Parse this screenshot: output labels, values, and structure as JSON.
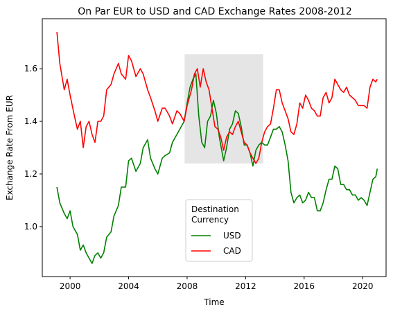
{
  "chart_data": {
    "type": "line",
    "title": "On Par EUR to USD and CAD Exchange Rates 2008-2012",
    "xlabel": "Time",
    "ylabel": "Exchange Rate From EUR",
    "xlim": [
      1998.1,
      2021.6
    ],
    "ylim": [
      0.81,
      1.79
    ],
    "x_ticks": [
      2000,
      2004,
      2008,
      2012,
      2016,
      2020
    ],
    "y_ticks": [
      1.0,
      1.2,
      1.4,
      1.6
    ],
    "y_tick_labels": [
      "1.0",
      "1.2",
      "1.4",
      "1.6"
    ],
    "grid": false,
    "highlight_region": {
      "x": [
        2007.83,
        2013.2
      ],
      "y": [
        1.24,
        1.655
      ],
      "color": "#e5e5e5"
    },
    "legend": {
      "title": "Destination\nCurrency",
      "placement": "lower-center"
    },
    "series": [
      {
        "name": "USD",
        "color": "#008000",
        "points": [
          [
            1999.1,
            1.15
          ],
          [
            1999.3,
            1.09
          ],
          [
            1999.6,
            1.05
          ],
          [
            1999.8,
            1.03
          ],
          [
            2000.0,
            1.06
          ],
          [
            2000.2,
            1.0
          ],
          [
            2000.5,
            0.97
          ],
          [
            2000.7,
            0.91
          ],
          [
            2000.9,
            0.93
          ],
          [
            2001.1,
            0.9
          ],
          [
            2001.3,
            0.88
          ],
          [
            2001.5,
            0.86
          ],
          [
            2001.7,
            0.89
          ],
          [
            2001.9,
            0.9
          ],
          [
            2002.1,
            0.88
          ],
          [
            2002.3,
            0.9
          ],
          [
            2002.5,
            0.96
          ],
          [
            2002.8,
            0.98
          ],
          [
            2003.0,
            1.04
          ],
          [
            2003.3,
            1.08
          ],
          [
            2003.5,
            1.15
          ],
          [
            2003.8,
            1.15
          ],
          [
            2004.0,
            1.25
          ],
          [
            2004.2,
            1.26
          ],
          [
            2004.5,
            1.21
          ],
          [
            2004.8,
            1.24
          ],
          [
            2005.0,
            1.3
          ],
          [
            2005.3,
            1.33
          ],
          [
            2005.5,
            1.26
          ],
          [
            2005.8,
            1.22
          ],
          [
            2006.0,
            1.2
          ],
          [
            2006.3,
            1.26
          ],
          [
            2006.5,
            1.27
          ],
          [
            2006.8,
            1.28
          ],
          [
            2007.0,
            1.32
          ],
          [
            2007.3,
            1.35
          ],
          [
            2007.5,
            1.37
          ],
          [
            2007.8,
            1.4
          ],
          [
            2008.0,
            1.47
          ],
          [
            2008.2,
            1.53
          ],
          [
            2008.4,
            1.56
          ],
          [
            2008.6,
            1.58
          ],
          [
            2008.8,
            1.42
          ],
          [
            2009.0,
            1.32
          ],
          [
            2009.2,
            1.3
          ],
          [
            2009.4,
            1.4
          ],
          [
            2009.6,
            1.42
          ],
          [
            2009.8,
            1.48
          ],
          [
            2010.0,
            1.43
          ],
          [
            2010.2,
            1.34
          ],
          [
            2010.5,
            1.25
          ],
          [
            2010.7,
            1.3
          ],
          [
            2010.9,
            1.37
          ],
          [
            2011.1,
            1.39
          ],
          [
            2011.3,
            1.44
          ],
          [
            2011.5,
            1.43
          ],
          [
            2011.7,
            1.38
          ],
          [
            2011.9,
            1.31
          ],
          [
            2012.1,
            1.31
          ],
          [
            2012.3,
            1.28
          ],
          [
            2012.5,
            1.23
          ],
          [
            2012.7,
            1.29
          ],
          [
            2012.9,
            1.31
          ],
          [
            2013.1,
            1.32
          ],
          [
            2013.3,
            1.31
          ],
          [
            2013.5,
            1.31
          ],
          [
            2013.7,
            1.34
          ],
          [
            2013.9,
            1.37
          ],
          [
            2014.1,
            1.37
          ],
          [
            2014.3,
            1.38
          ],
          [
            2014.5,
            1.36
          ],
          [
            2014.7,
            1.31
          ],
          [
            2014.9,
            1.25
          ],
          [
            2015.1,
            1.13
          ],
          [
            2015.3,
            1.09
          ],
          [
            2015.5,
            1.11
          ],
          [
            2015.7,
            1.12
          ],
          [
            2015.9,
            1.09
          ],
          [
            2016.1,
            1.1
          ],
          [
            2016.3,
            1.13
          ],
          [
            2016.5,
            1.11
          ],
          [
            2016.7,
            1.11
          ],
          [
            2016.9,
            1.06
          ],
          [
            2017.1,
            1.06
          ],
          [
            2017.3,
            1.09
          ],
          [
            2017.5,
            1.14
          ],
          [
            2017.7,
            1.18
          ],
          [
            2017.9,
            1.18
          ],
          [
            2018.1,
            1.23
          ],
          [
            2018.3,
            1.22
          ],
          [
            2018.5,
            1.16
          ],
          [
            2018.7,
            1.16
          ],
          [
            2018.9,
            1.14
          ],
          [
            2019.1,
            1.14
          ],
          [
            2019.3,
            1.12
          ],
          [
            2019.5,
            1.12
          ],
          [
            2019.7,
            1.1
          ],
          [
            2019.9,
            1.11
          ],
          [
            2020.1,
            1.1
          ],
          [
            2020.3,
            1.08
          ],
          [
            2020.5,
            1.13
          ],
          [
            2020.7,
            1.18
          ],
          [
            2020.9,
            1.19
          ],
          [
            2021.0,
            1.22
          ]
        ]
      },
      {
        "name": "CAD",
        "color": "#ff0000",
        "points": [
          [
            1999.1,
            1.74
          ],
          [
            1999.3,
            1.62
          ],
          [
            1999.6,
            1.52
          ],
          [
            1999.8,
            1.56
          ],
          [
            2000.0,
            1.5
          ],
          [
            2000.3,
            1.42
          ],
          [
            2000.5,
            1.37
          ],
          [
            2000.7,
            1.4
          ],
          [
            2000.9,
            1.3
          ],
          [
            2001.1,
            1.38
          ],
          [
            2001.3,
            1.4
          ],
          [
            2001.5,
            1.35
          ],
          [
            2001.7,
            1.32
          ],
          [
            2001.9,
            1.4
          ],
          [
            2002.1,
            1.4
          ],
          [
            2002.3,
            1.42
          ],
          [
            2002.5,
            1.52
          ],
          [
            2002.8,
            1.54
          ],
          [
            2003.0,
            1.58
          ],
          [
            2003.3,
            1.62
          ],
          [
            2003.5,
            1.58
          ],
          [
            2003.8,
            1.56
          ],
          [
            2004.0,
            1.65
          ],
          [
            2004.2,
            1.63
          ],
          [
            2004.5,
            1.57
          ],
          [
            2004.8,
            1.6
          ],
          [
            2005.0,
            1.58
          ],
          [
            2005.3,
            1.52
          ],
          [
            2005.5,
            1.49
          ],
          [
            2005.8,
            1.44
          ],
          [
            2006.0,
            1.4
          ],
          [
            2006.3,
            1.45
          ],
          [
            2006.5,
            1.45
          ],
          [
            2006.8,
            1.42
          ],
          [
            2007.0,
            1.39
          ],
          [
            2007.3,
            1.44
          ],
          [
            2007.5,
            1.43
          ],
          [
            2007.8,
            1.4
          ],
          [
            2008.0,
            1.46
          ],
          [
            2008.3,
            1.52
          ],
          [
            2008.5,
            1.58
          ],
          [
            2008.7,
            1.6
          ],
          [
            2008.9,
            1.53
          ],
          [
            2009.1,
            1.6
          ],
          [
            2009.3,
            1.55
          ],
          [
            2009.5,
            1.52
          ],
          [
            2009.7,
            1.45
          ],
          [
            2009.9,
            1.38
          ],
          [
            2010.1,
            1.37
          ],
          [
            2010.3,
            1.34
          ],
          [
            2010.5,
            1.29
          ],
          [
            2010.7,
            1.34
          ],
          [
            2010.9,
            1.36
          ],
          [
            2011.1,
            1.35
          ],
          [
            2011.3,
            1.38
          ],
          [
            2011.5,
            1.4
          ],
          [
            2011.7,
            1.36
          ],
          [
            2011.9,
            1.32
          ],
          [
            2012.1,
            1.31
          ],
          [
            2012.3,
            1.28
          ],
          [
            2012.5,
            1.26
          ],
          [
            2012.7,
            1.24
          ],
          [
            2012.9,
            1.26
          ],
          [
            2013.1,
            1.32
          ],
          [
            2013.3,
            1.36
          ],
          [
            2013.5,
            1.38
          ],
          [
            2013.7,
            1.39
          ],
          [
            2013.9,
            1.45
          ],
          [
            2014.1,
            1.52
          ],
          [
            2014.3,
            1.52
          ],
          [
            2014.5,
            1.47
          ],
          [
            2014.7,
            1.44
          ],
          [
            2014.9,
            1.41
          ],
          [
            2015.1,
            1.36
          ],
          [
            2015.3,
            1.35
          ],
          [
            2015.5,
            1.39
          ],
          [
            2015.7,
            1.47
          ],
          [
            2015.9,
            1.45
          ],
          [
            2016.1,
            1.5
          ],
          [
            2016.3,
            1.48
          ],
          [
            2016.5,
            1.45
          ],
          [
            2016.7,
            1.44
          ],
          [
            2016.9,
            1.42
          ],
          [
            2017.1,
            1.42
          ],
          [
            2017.3,
            1.49
          ],
          [
            2017.5,
            1.51
          ],
          [
            2017.7,
            1.47
          ],
          [
            2017.9,
            1.49
          ],
          [
            2018.1,
            1.56
          ],
          [
            2018.3,
            1.54
          ],
          [
            2018.5,
            1.52
          ],
          [
            2018.7,
            1.51
          ],
          [
            2018.9,
            1.53
          ],
          [
            2019.1,
            1.5
          ],
          [
            2019.3,
            1.49
          ],
          [
            2019.5,
            1.48
          ],
          [
            2019.7,
            1.46
          ],
          [
            2019.9,
            1.46
          ],
          [
            2020.1,
            1.46
          ],
          [
            2020.3,
            1.45
          ],
          [
            2020.5,
            1.53
          ],
          [
            2020.7,
            1.56
          ],
          [
            2020.9,
            1.55
          ],
          [
            2021.0,
            1.56
          ]
        ]
      }
    ]
  }
}
